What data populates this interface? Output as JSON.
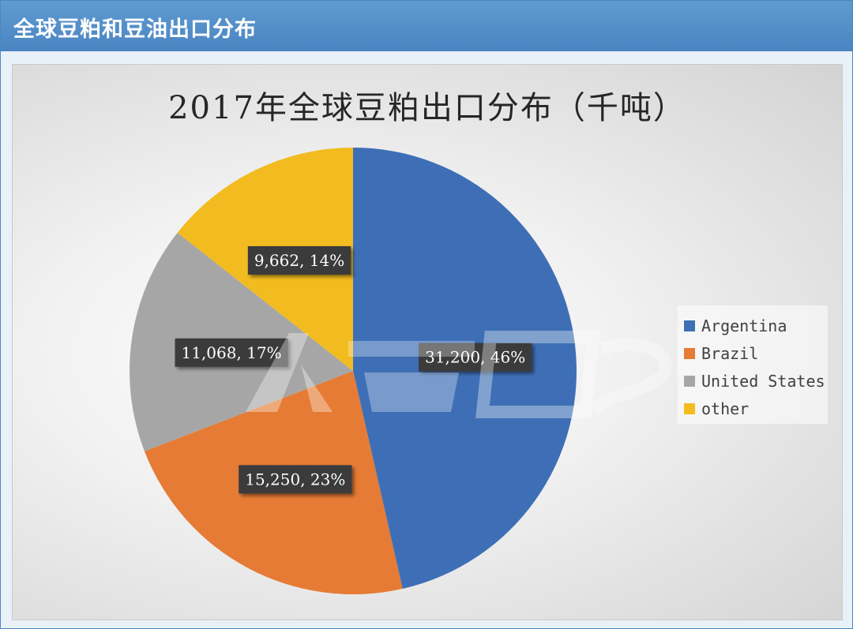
{
  "header": {
    "title": "全球豆粕和豆油出口分布"
  },
  "chart_data": {
    "type": "pie",
    "title": "2017年全球豆粕出口分布（千吨）",
    "categories": [
      "Argentina",
      "Brazil",
      "United States",
      "other"
    ],
    "values": [
      31200,
      15250,
      11068,
      9662
    ],
    "percent": [
      46,
      23,
      17,
      14
    ],
    "labels": [
      "31,200, 46%",
      "15,250, 23%",
      "11,068, 17%",
      "9,662, 14%"
    ],
    "colors": [
      "#3e6fb6",
      "#e57b35",
      "#a6a6a6",
      "#f2bb1f"
    ],
    "legend_position": "right"
  }
}
